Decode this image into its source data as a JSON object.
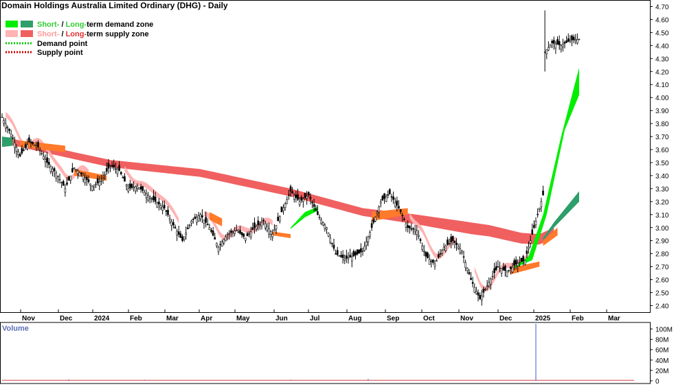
{
  "chart_data": {
    "type": "candlestick",
    "title": "Domain Holdings Australia Limited Ordinary (DHG) - Daily",
    "legend": {
      "placement": "top-left",
      "items": [
        {
          "prefix": "Short-",
          "sep": " / ",
          "suffix": "Long-",
          "rest": "term demand zone",
          "prefix_color": "#33cc33",
          "suffix_color": "#33cc33",
          "rest_color": "#000000",
          "swatch_short": "#00ee00",
          "swatch_long": "#2e9e6a"
        },
        {
          "prefix": "Short-",
          "sep": " / ",
          "suffix": "Long-",
          "rest": "term supply zone",
          "prefix_color": "#ff9999",
          "suffix_color": "#e03030",
          "rest_color": "#000000",
          "swatch_short": "#ffb3b3",
          "swatch_long": "#f06060"
        },
        {
          "label": "Demand point",
          "line_color": "#00cc00",
          "style": "dotted"
        },
        {
          "label": "Supply point",
          "line_color": "#cc0000",
          "style": "dotted"
        }
      ]
    },
    "y_axis": {
      "min": 2.35,
      "max": 4.75,
      "ticks": [
        "4.70",
        "4.60",
        "4.50",
        "4.40",
        "4.30",
        "4.20",
        "4.10",
        "4.00",
        "3.90",
        "3.80",
        "3.70",
        "3.60",
        "3.50",
        "3.40",
        "3.30",
        "3.20",
        "3.10",
        "3.00",
        "2.90",
        "2.80",
        "2.70",
        "2.60",
        "2.50",
        "2.40"
      ]
    },
    "x_axis": {
      "labels": [
        "Nov",
        "Dec",
        "2024",
        "Feb",
        "Mar",
        "Apr",
        "May",
        "Jun",
        "Jul",
        "Aug",
        "Sep",
        "Oct",
        "Nov",
        "Dec",
        "2025",
        "Feb",
        "Mar"
      ]
    },
    "price_path": [
      [
        0,
        3.85
      ],
      [
        5,
        3.72
      ],
      [
        10,
        3.55
      ],
      [
        15,
        3.66
      ],
      [
        20,
        3.62
      ],
      [
        25,
        3.5
      ],
      [
        30,
        3.42
      ],
      [
        35,
        3.3
      ],
      [
        40,
        3.46
      ],
      [
        45,
        3.4
      ],
      [
        50,
        3.32
      ],
      [
        55,
        3.36
      ],
      [
        60,
        3.48
      ],
      [
        65,
        3.44
      ],
      [
        70,
        3.3
      ],
      [
        75,
        3.32
      ],
      [
        80,
        3.26
      ],
      [
        85,
        3.2
      ],
      [
        90,
        3.15
      ],
      [
        95,
        3.02
      ],
      [
        100,
        2.9
      ],
      [
        105,
        3.05
      ],
      [
        110,
        3.1
      ],
      [
        115,
        3.0
      ],
      [
        120,
        2.85
      ],
      [
        125,
        2.95
      ],
      [
        130,
        2.98
      ],
      [
        135,
        2.92
      ],
      [
        140,
        3.0
      ],
      [
        145,
        3.05
      ],
      [
        150,
        2.95
      ],
      [
        155,
        3.12
      ],
      [
        160,
        3.28
      ],
      [
        165,
        3.2
      ],
      [
        170,
        3.25
      ],
      [
        175,
        3.1
      ],
      [
        180,
        3.0
      ],
      [
        185,
        2.8
      ],
      [
        190,
        2.76
      ],
      [
        195,
        2.78
      ],
      [
        200,
        2.82
      ],
      [
        205,
        3.0
      ],
      [
        210,
        3.2
      ],
      [
        215,
        3.26
      ],
      [
        220,
        3.15
      ],
      [
        225,
        3.0
      ],
      [
        230,
        2.98
      ],
      [
        235,
        2.78
      ],
      [
        240,
        2.72
      ],
      [
        245,
        2.85
      ],
      [
        250,
        2.9
      ],
      [
        255,
        2.82
      ],
      [
        260,
        2.6
      ],
      [
        265,
        2.45
      ],
      [
        270,
        2.58
      ],
      [
        275,
        2.7
      ],
      [
        280,
        2.66
      ],
      [
        285,
        2.72
      ],
      [
        290,
        2.75
      ],
      [
        295,
        3.0
      ],
      [
        300,
        3.25
      ],
      [
        301,
        4.35
      ],
      [
        305,
        4.42
      ],
      [
        310,
        4.4
      ],
      [
        315,
        4.44
      ],
      [
        320,
        4.45
      ]
    ],
    "zones": {
      "long_supply": {
        "upper": [
          [
            0,
            3.7
          ],
          [
            60,
            3.52
          ],
          [
            110,
            3.45
          ],
          [
            160,
            3.3
          ],
          [
            200,
            3.15
          ],
          [
            230,
            3.1
          ],
          [
            270,
            3.02
          ],
          [
            288,
            2.96
          ],
          [
            298,
            2.95
          ],
          [
            306,
            3.0
          ],
          [
            320,
            3.1
          ]
        ],
        "width": [
          [
            0,
            0.05
          ],
          [
            110,
            0.06
          ],
          [
            200,
            0.06
          ],
          [
            260,
            0.09
          ],
          [
            298,
            0.08
          ]
        ],
        "color": "#f06060",
        "x_end": 307
      },
      "long_demand": {
        "lower": [
          [
            300,
            2.9
          ],
          [
            306,
            3.0
          ],
          [
            320,
            3.2
          ]
        ],
        "upper": [
          [
            300,
            2.92
          ],
          [
            306,
            3.04
          ],
          [
            320,
            3.28
          ]
        ],
        "color": "#2e9e6a"
      },
      "short_supply": {
        "color": "#ffb3b3"
      },
      "short_demand": {
        "color": "#00ee00"
      }
    },
    "volume": {
      "label": "Volume",
      "ticks": [
        "100M",
        "80M",
        "60M",
        "40M",
        "20M",
        "0"
      ],
      "max": 110,
      "spikes": [
        [
          37,
          2.5
        ],
        [
          79,
          1.5
        ],
        [
          160,
          1.5
        ],
        [
          203,
          3.5
        ],
        [
          296,
          110
        ]
      ]
    }
  }
}
